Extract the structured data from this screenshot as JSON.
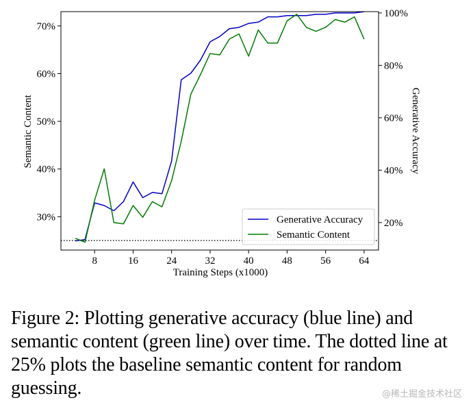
{
  "chart_data": {
    "type": "line",
    "xlabel": "Training Steps (x1000)",
    "ylabel_left": "Semantic Content",
    "ylabel_right": "Generative Accuracy",
    "x_ticks": [
      8,
      16,
      24,
      32,
      40,
      48,
      56,
      64
    ],
    "y_left_ticks": [
      30,
      40,
      50,
      60,
      70
    ],
    "y_left_tick_labels": [
      "30%",
      "40%",
      "50%",
      "60%",
      "70%"
    ],
    "y_right_ticks": [
      20,
      40,
      60,
      80,
      100
    ],
    "y_right_tick_labels": [
      "20%",
      "40%",
      "60%",
      "80%",
      "100%"
    ],
    "xlim": [
      1,
      67
    ],
    "ylim_left": [
      23,
      73
    ],
    "ylim_right": [
      9.5,
      100.5
    ],
    "baseline": {
      "value": 25,
      "axis": "left",
      "style": "dotted",
      "label": "random guessing"
    },
    "legend": {
      "placement": "bottom-right"
    },
    "series": [
      {
        "name": "Generative Accuracy",
        "color": "#0000c8",
        "axis": "right",
        "x": [
          4,
          6,
          8,
          10,
          12,
          14,
          16,
          18,
          20,
          22,
          24,
          26,
          28,
          30,
          32,
          34,
          36,
          38,
          40,
          42,
          44,
          46,
          48,
          50,
          52,
          54,
          56,
          58,
          60,
          62,
          64
        ],
        "values": [
          13,
          13.5,
          27.5,
          26.5,
          24.5,
          28,
          35.5,
          29.5,
          31.5,
          31,
          43.5,
          74.5,
          77,
          82,
          89,
          91,
          94,
          94.5,
          96,
          96.5,
          98.5,
          98.5,
          99,
          99,
          99,
          99.5,
          99.5,
          100,
          100,
          100,
          100.5
        ]
      },
      {
        "name": "Semantic Content",
        "color": "#007a00",
        "axis": "right",
        "x": [
          4,
          6,
          8,
          10,
          12,
          14,
          16,
          18,
          20,
          22,
          24,
          26,
          28,
          30,
          32,
          34,
          36,
          38,
          40,
          42,
          44,
          46,
          48,
          50,
          52,
          54,
          56,
          58,
          60,
          62,
          64
        ],
        "values": [
          14,
          12.5,
          28.5,
          40.5,
          20,
          19.5,
          26.5,
          22,
          28,
          26,
          36,
          51,
          69,
          76.5,
          84.5,
          84,
          90,
          92,
          83.5,
          93.5,
          88.5,
          88.5,
          97,
          99.5,
          94.5,
          93,
          94.5,
          97.5,
          96.5,
          98.5,
          90
        ]
      }
    ]
  },
  "caption": "Figure 2: Plotting generative accuracy (blue line) and semantic content (green line) over time. The dotted line at 25% plots the baseline semantic content for random guessing.",
  "watermark": "@稀土掘金技术社区"
}
